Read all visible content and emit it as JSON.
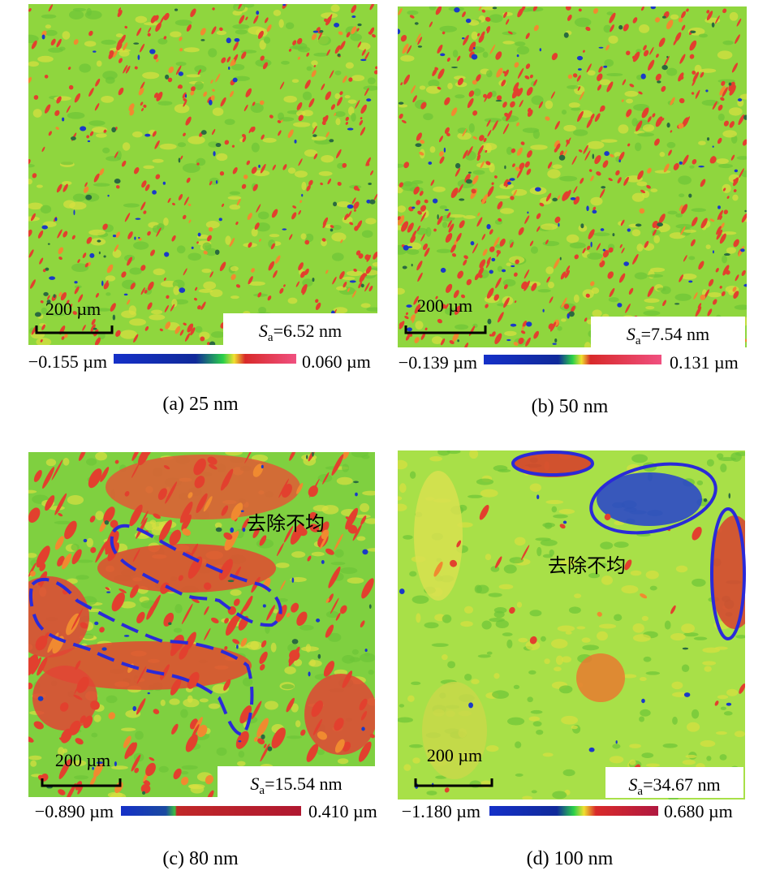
{
  "panels": [
    {
      "scale_bar": "200 µm",
      "sa_symbol": "S",
      "sa_subscript": "a",
      "sa_value": "=6.52 nm",
      "colorbar_min": "−0.155 µm",
      "colorbar_max": "0.060 µm",
      "caption": "(a) 25 nm"
    },
    {
      "scale_bar": "200 µm",
      "sa_symbol": "S",
      "sa_subscript": "a",
      "sa_value": "=7.54 nm",
      "colorbar_min": "−0.139 µm",
      "colorbar_max": "0.131 µm",
      "caption": "(b) 50 nm"
    },
    {
      "scale_bar": "200 µm",
      "sa_symbol": "S",
      "sa_subscript": "a",
      "sa_value": "=15.54 nm",
      "colorbar_min": "−0.890 µm",
      "colorbar_max": "0.410 µm",
      "caption": "(c) 80 nm",
      "annotation": "去除不均"
    },
    {
      "scale_bar": "200 µm",
      "sa_symbol": "S",
      "sa_subscript": "a",
      "sa_value": "=34.67 nm",
      "colorbar_min": "−1.180 µm",
      "colorbar_max": "0.680 µm",
      "caption": "(d) 100 nm",
      "annotation": "去除不均"
    }
  ]
}
